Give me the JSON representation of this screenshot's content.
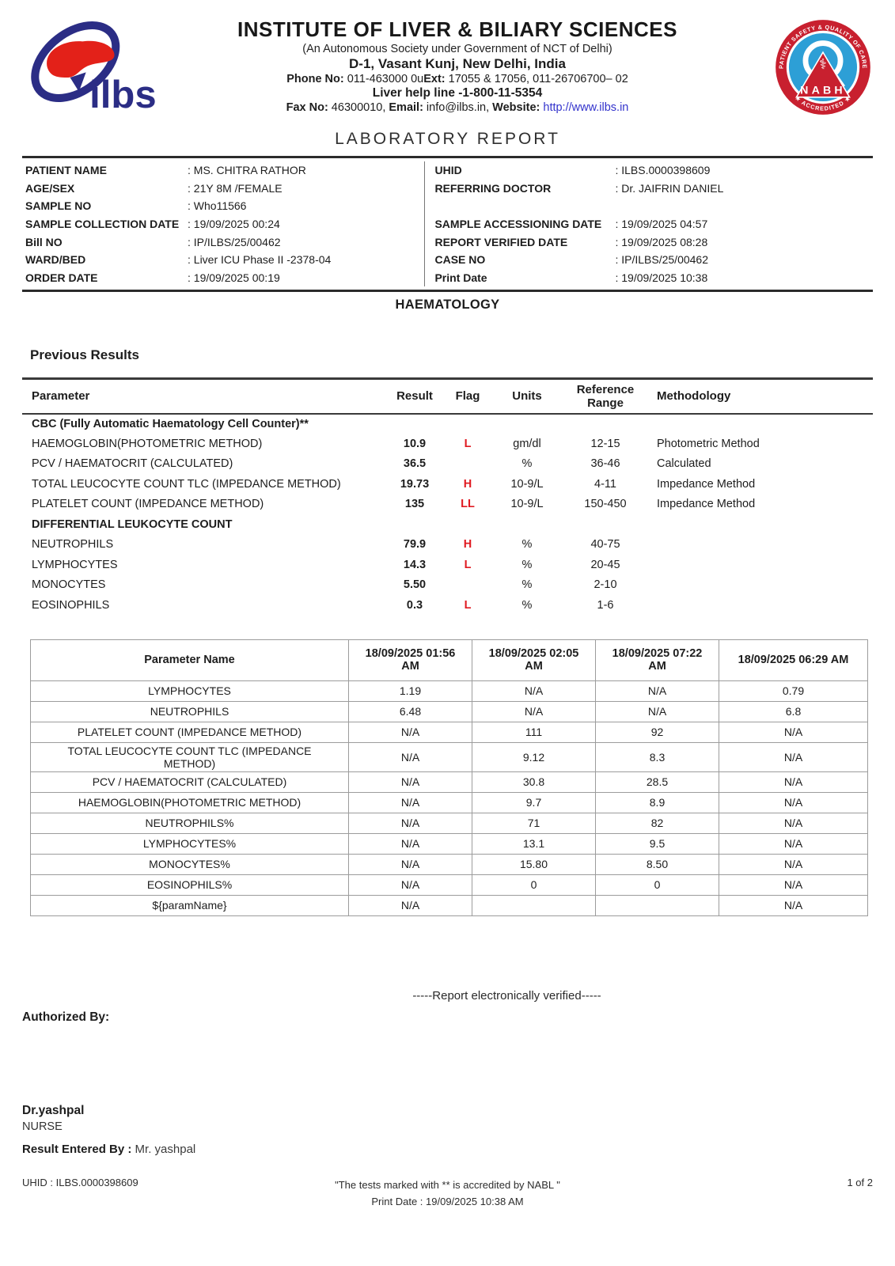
{
  "colors": {
    "flag_red": "#e01b22",
    "link_blue": "#3333cc",
    "logo_navy": "#2b2d85",
    "logo_red": "#e32119",
    "nabh_red": "#c8202f",
    "nabh_blue": "#2d9fd6",
    "border_dark": "#2b2b2b",
    "grid_gray": "#9c9c9c"
  },
  "header": {
    "logo_text": "ilbs",
    "institute_name": "INSTITUTE OF LIVER & BILIARY SCIENCES",
    "subtitle": "(An Autonomous Society under Government of NCT of Delhi)",
    "address": "D-1, Vasant Kunj, New Delhi, India",
    "phone_label": "Phone No:",
    "phone_value": " 011-463000 0u",
    "ext_label": "Ext:",
    "ext_value": " 17055 & 17056, 011-26706700– 02",
    "helpline": "Liver help line -1-800-11-5354",
    "fax_label": "Fax No:",
    "fax_value": " 46300010,",
    "email_label": "Email:",
    "email_value": " info@ilbs.in,",
    "website_label": "Website:",
    "website_value": "http://www.ilbs.in",
    "nabh": {
      "top_text": "PATIENT SAFETY & QUALITY OF CARE",
      "name": "NABH",
      "bottom_text": "★ ACCREDITED ★",
      "emblem": "⚕"
    }
  },
  "report_title": "LABORATORY REPORT",
  "patient_info": {
    "left": [
      {
        "label": "PATIENT NAME",
        "value": ": MS. CHITRA RATHOR"
      },
      {
        "label": "AGE/SEX",
        "value": ": 21Y 8M /FEMALE"
      },
      {
        "label": "SAMPLE NO",
        "value": ": Who11566"
      },
      {
        "label": "SAMPLE COLLECTION DATE",
        "value": ": 19/09/2025 00:24"
      },
      {
        "label": "Bill NO",
        "value": ": IP/ILBS/25/00462"
      },
      {
        "label": "WARD/BED",
        "value": ": Liver ICU Phase II -2378-04"
      },
      {
        "label": "ORDER DATE",
        "value": ": 19/09/2025 00:19"
      }
    ],
    "right": [
      {
        "label": "UHID",
        "value": ": ILBS.0000398609"
      },
      {
        "label": "REFERRING DOCTOR",
        "value": ": Dr. JAIFRIN DANIEL"
      },
      {
        "label": "",
        "value": ""
      },
      {
        "label": "SAMPLE ACCESSIONING DATE",
        "value": ": 19/09/2025 04:57"
      },
      {
        "label": "REPORT VERIFIED DATE",
        "value": ": 19/09/2025 08:28"
      },
      {
        "label": "CASE NO",
        "value": ": IP/ILBS/25/00462"
      },
      {
        "label": "Print Date",
        "value": ": 19/09/2025 10:38"
      }
    ]
  },
  "section_title": "HAEMATOLOGY",
  "previous_results_title": "Previous Results",
  "results_table": {
    "headers": [
      "Parameter",
      "Result",
      "Flag",
      "Units",
      "Reference Range",
      "Methodology"
    ],
    "rows": [
      {
        "type": "section",
        "label": "CBC (Fully Automatic Haematology Cell Counter)**"
      },
      {
        "type": "data",
        "parameter": "HAEMOGLOBIN(PHOTOMETRIC METHOD)",
        "result": "10.9",
        "flag": "L",
        "units": "gm/dl",
        "range": "12-15",
        "methodology": "Photometric Method"
      },
      {
        "type": "data",
        "parameter": "PCV / HAEMATOCRIT (CALCULATED)",
        "result": "36.5",
        "flag": "",
        "units": "%",
        "range": "36-46",
        "methodology": "Calculated"
      },
      {
        "type": "data",
        "parameter": "TOTAL LEUCOCYTE COUNT TLC (IMPEDANCE METHOD)",
        "result": "19.73",
        "flag": "H",
        "units": "10-9/L",
        "range": "4-11",
        "methodology": "Impedance Method"
      },
      {
        "type": "data",
        "parameter": "PLATELET COUNT (IMPEDANCE METHOD)",
        "result": "135",
        "flag": "LL",
        "units": "10-9/L",
        "range": "150-450",
        "methodology": "Impedance Method"
      },
      {
        "type": "section",
        "label": "DIFFERENTIAL LEUKOCYTE COUNT"
      },
      {
        "type": "data",
        "parameter": "NEUTROPHILS",
        "result": "79.9",
        "flag": "H",
        "units": "%",
        "range": "40-75",
        "methodology": ""
      },
      {
        "type": "data",
        "parameter": "LYMPHOCYTES",
        "result": "14.3",
        "flag": "L",
        "units": "%",
        "range": "20-45",
        "methodology": ""
      },
      {
        "type": "data",
        "parameter": "MONOCYTES",
        "result": "5.50",
        "flag": "",
        "units": "%",
        "range": "2-10",
        "methodology": ""
      },
      {
        "type": "data",
        "parameter": "EOSINOPHILS",
        "result": "0.3",
        "flag": "L",
        "units": "%",
        "range": "1-6",
        "methodology": ""
      }
    ]
  },
  "history_table": {
    "headers": [
      "Parameter Name",
      "18/09/2025 01:56 AM",
      "18/09/2025 02:05 AM",
      "18/09/2025 07:22 AM",
      "18/09/2025 06:29 AM"
    ],
    "rows": [
      [
        "LYMPHOCYTES",
        "1.19",
        "N/A",
        "N/A",
        "0.79"
      ],
      [
        "NEUTROPHILS",
        "6.48",
        "N/A",
        "N/A",
        "6.8"
      ],
      [
        "PLATELET COUNT (IMPEDANCE METHOD)",
        "N/A",
        "111",
        "92",
        "N/A"
      ],
      [
        "TOTAL LEUCOCYTE COUNT TLC (IMPEDANCE METHOD)",
        "N/A",
        "9.12",
        "8.3",
        "N/A"
      ],
      [
        "PCV / HAEMATOCRIT (CALCULATED)",
        "N/A",
        "30.8",
        "28.5",
        "N/A"
      ],
      [
        "HAEMOGLOBIN(PHOTOMETRIC METHOD)",
        "N/A",
        "9.7",
        "8.9",
        "N/A"
      ],
      [
        "NEUTROPHILS%",
        "N/A",
        "71",
        "82",
        "N/A"
      ],
      [
        "LYMPHOCYTES%",
        "N/A",
        "13.1",
        "9.5",
        "N/A"
      ],
      [
        "MONOCYTES%",
        "N/A",
        "15.80",
        "8.50",
        "N/A"
      ],
      [
        "EOSINOPHILS%",
        "N/A",
        "0",
        "0",
        "N/A"
      ],
      [
        "${paramName}",
        "N/A",
        "",
        "",
        "N/A"
      ]
    ]
  },
  "verification_text": "-----Report electronically verified-----",
  "authorized_by_label": "Authorized By:",
  "signatory": {
    "name": "Dr.yashpal",
    "designation": "NURSE",
    "entered_by_label": "Result Entered By :",
    "entered_by_value": " Mr. yashpal"
  },
  "footer": {
    "uhid": "UHID : ILBS.0000398609",
    "note": "\"The tests marked with ** is accredited by NABL \"",
    "print_date": "Print Date : 19/09/2025 10:38 AM",
    "page": "1 of 2"
  }
}
